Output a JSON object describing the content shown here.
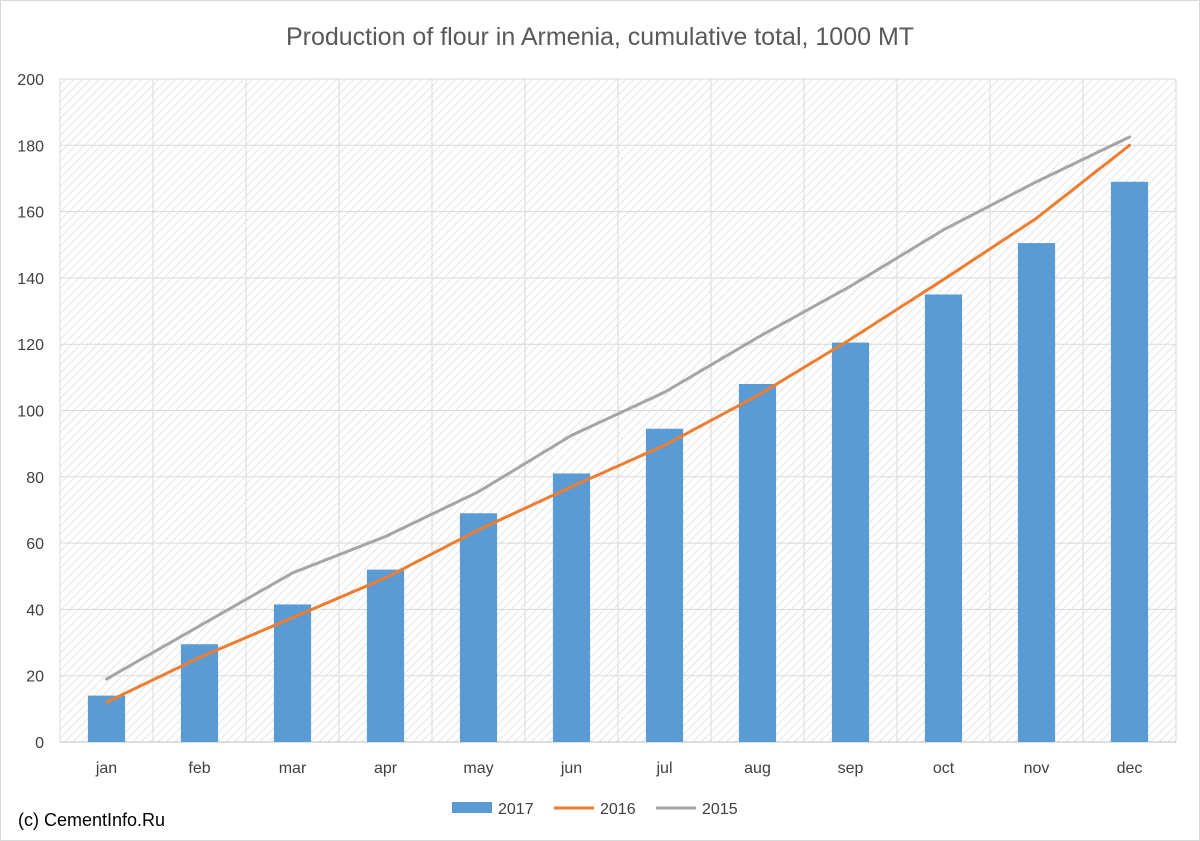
{
  "chart_data": {
    "type": "bar",
    "title": "Production of flour in Armenia, cumulative total, 1000 MT",
    "xlabel": "",
    "ylabel": "",
    "categories": [
      "jan",
      "feb",
      "mar",
      "apr",
      "may",
      "jun",
      "jul",
      "aug",
      "sep",
      "oct",
      "nov",
      "dec"
    ],
    "ylim": [
      0,
      200
    ],
    "yticks": [
      0,
      20,
      40,
      60,
      80,
      100,
      120,
      140,
      160,
      180,
      200
    ],
    "grid": true,
    "legend_position": "bottom",
    "series": [
      {
        "name": "2017",
        "kind": "bar",
        "color": "#5B9BD5",
        "values": [
          14,
          29.5,
          41.5,
          52,
          69,
          81,
          94.5,
          108,
          120.5,
          135,
          150.5,
          169
        ]
      },
      {
        "name": "2016",
        "kind": "line",
        "color": "#ED7D31",
        "values": [
          12,
          25.5,
          37.5,
          49.5,
          64,
          77,
          89.5,
          104.5,
          121.5,
          139.5,
          158,
          180
        ]
      },
      {
        "name": "2015",
        "kind": "line",
        "color": "#A5A5A5",
        "values": [
          19,
          35,
          51,
          62,
          75.5,
          92.5,
          105.5,
          122,
          137.5,
          154.5,
          169,
          182.5
        ]
      }
    ]
  },
  "credit": "(c) CementInfo.Ru",
  "colors": {
    "plot_hatch": "#d9d9d9",
    "gridline": "#d9d9d9",
    "axis": "#bfbfbf"
  }
}
